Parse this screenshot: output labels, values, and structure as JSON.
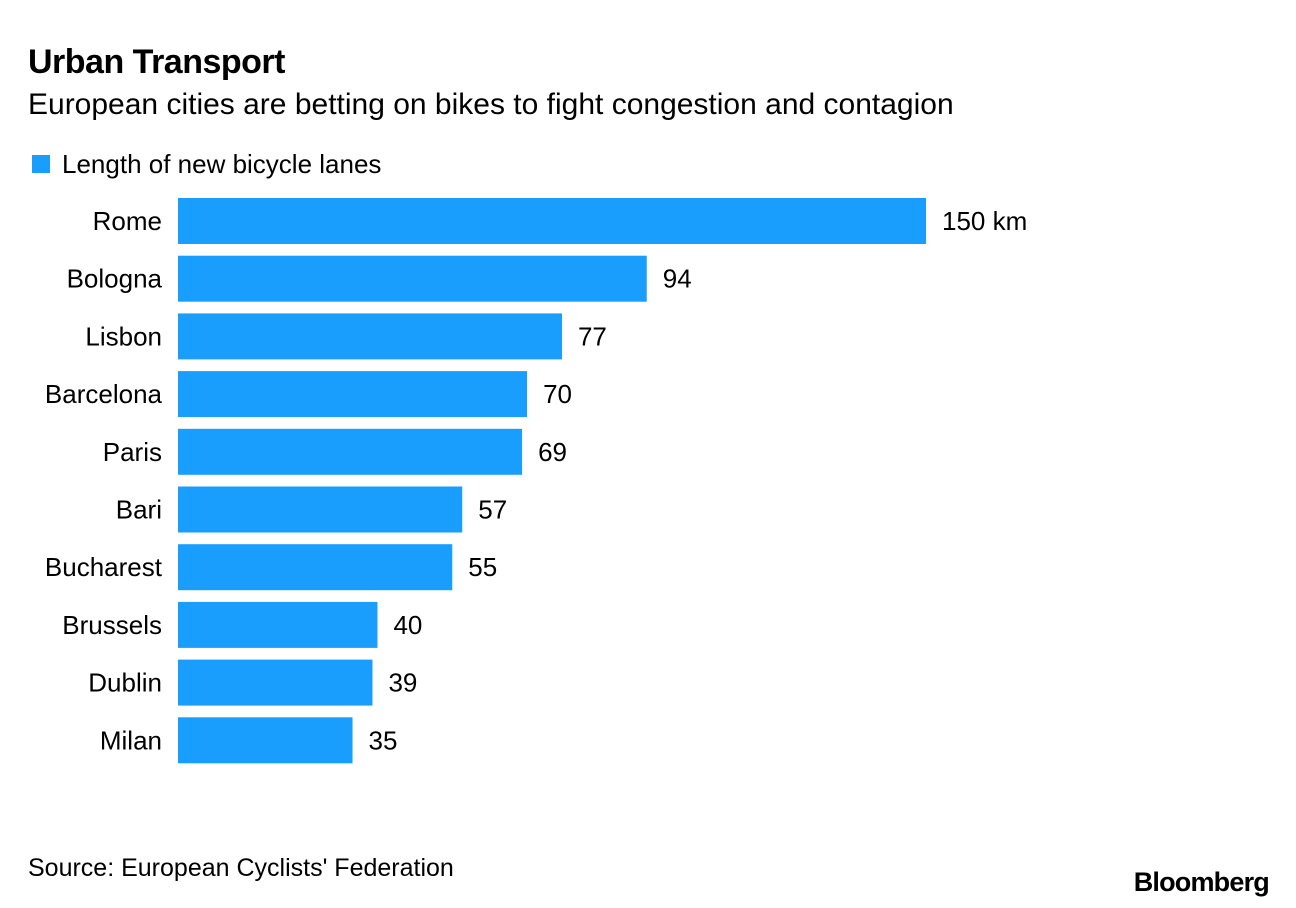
{
  "header": {
    "title": "Urban Transport",
    "subtitle": "European cities are betting on bikes to fight congestion and contagion"
  },
  "legend": {
    "label": "Length of new bicycle lanes",
    "color": "#1a9efd"
  },
  "chart_data": {
    "type": "bar",
    "orientation": "horizontal",
    "title": "Urban Transport",
    "subtitle": "European cities are betting on bikes to fight congestion and contagion",
    "categories": [
      "Rome",
      "Bologna",
      "Lisbon",
      "Barcelona",
      "Paris",
      "Bari",
      "Bucharest",
      "Brussels",
      "Dublin",
      "Milan"
    ],
    "series": [
      {
        "name": "Length of new bicycle lanes",
        "values": [
          150,
          94,
          77,
          70,
          69,
          57,
          55,
          40,
          39,
          35
        ],
        "color": "#1a9efd"
      }
    ],
    "value_labels": [
      "150 km",
      "94",
      "77",
      "70",
      "69",
      "57",
      "55",
      "40",
      "39",
      "35"
    ],
    "unit": "km",
    "xlim": [
      0,
      150
    ],
    "xlabel": "",
    "ylabel": "",
    "grid": false
  },
  "footer": {
    "source": "Source: European Cyclists' Federation",
    "brand": "Bloomberg"
  }
}
